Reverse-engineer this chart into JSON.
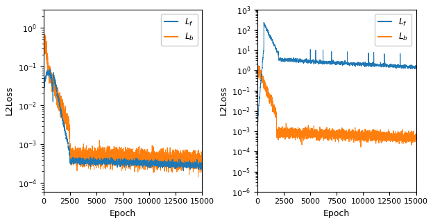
{
  "xlabel": "Epoch",
  "ylabel": "L2Loss",
  "xlim": [
    0,
    15000
  ],
  "ylim_left": [
    6e-05,
    3
  ],
  "ylim_right": [
    1e-06,
    1000
  ],
  "color_lf": "#1f77b4",
  "color_lb": "#ff7f0e",
  "legend_lf": "$L_f$",
  "legend_lb": "$L_b$",
  "n_epochs": 15000,
  "figsize": [
    6.24,
    3.22
  ],
  "dpi": 100
}
